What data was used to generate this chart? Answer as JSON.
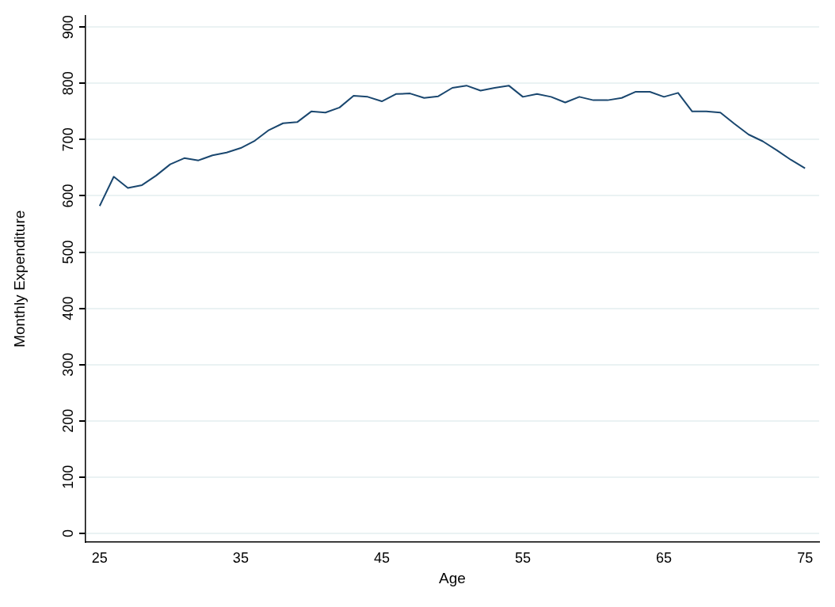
{
  "chart_data": {
    "type": "line",
    "xlabel": "Age",
    "ylabel": "Monthly Expenditure",
    "x": [
      25,
      26,
      27,
      28,
      29,
      30,
      31,
      32,
      33,
      34,
      35,
      36,
      37,
      38,
      39,
      40,
      41,
      42,
      43,
      44,
      45,
      46,
      47,
      48,
      49,
      50,
      51,
      52,
      53,
      54,
      55,
      56,
      57,
      58,
      59,
      60,
      61,
      62,
      63,
      64,
      65,
      66,
      67,
      68,
      69,
      70,
      71,
      72,
      73,
      74,
      75
    ],
    "series": [
      {
        "color": "#1a476f",
        "values": [
          582,
          634,
          614,
          619,
          636,
          656,
          667,
          663,
          672,
          677,
          685,
          698,
          717,
          729,
          731,
          750,
          748,
          757,
          778,
          776,
          768,
          781,
          782,
          774,
          777,
          792,
          796,
          787,
          792,
          796,
          776,
          781,
          776,
          766,
          776,
          770,
          770,
          774,
          785,
          785,
          776,
          783,
          750,
          750,
          748,
          728,
          709,
          697,
          681,
          664,
          649
        ]
      }
    ],
    "xlim": [
      24,
      76
    ],
    "xticks": [
      25,
      35,
      45,
      55,
      65,
      75
    ],
    "ylim": [
      -15,
      920
    ],
    "yticks": [
      0,
      100,
      200,
      300,
      400,
      500,
      600,
      700,
      800,
      900
    ],
    "grid": "y",
    "legend": false,
    "marker": "none",
    "line_style": "solid"
  }
}
